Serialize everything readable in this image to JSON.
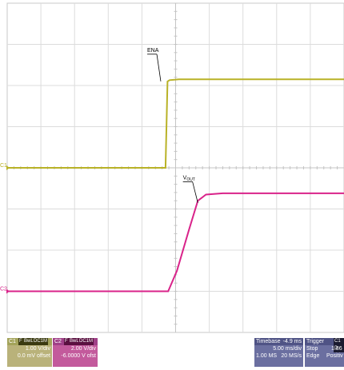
{
  "chart_data": {
    "type": "line",
    "x": {
      "divisions": 10,
      "units_per_div": 5,
      "unit": "ms",
      "range": [
        -25,
        25
      ]
    },
    "y": {
      "divisions": 8,
      "range": [
        -4,
        4
      ]
    },
    "grid": true,
    "series": [
      {
        "name": "ENA",
        "channel": "C1",
        "color": "#b9b227",
        "points": [
          [
            -25,
            0.0
          ],
          [
            -1.5,
            0.0
          ],
          [
            -1.2,
            2.1
          ],
          [
            -0.9,
            2.13
          ],
          [
            0.5,
            2.15
          ],
          [
            25,
            2.15
          ]
        ]
      },
      {
        "name": "VOUT",
        "channel": "C2",
        "color": "#d9238a",
        "points": [
          [
            -25,
            -3.0
          ],
          [
            -1.1,
            -3.0
          ],
          [
            0.2,
            -2.5
          ],
          [
            2.0,
            -1.5
          ],
          [
            3.3,
            -0.8
          ],
          [
            4.5,
            -0.65
          ],
          [
            7.0,
            -0.62
          ],
          [
            25,
            -0.62
          ]
        ]
      }
    ],
    "annotations": [
      {
        "text": "ENA",
        "at": [
          -2.2,
          2.1
        ],
        "label_at": [
          -3.5,
          2.8
        ],
        "series": 0
      },
      {
        "text": "V",
        "sub": "OUT",
        "at": [
          3.3,
          -0.85
        ],
        "label_at": [
          1.8,
          -0.3
        ],
        "series": 1
      }
    ],
    "channel_markers": [
      {
        "text": "C1",
        "y": 0.0,
        "color": "#b9b227"
      },
      {
        "text": "C2",
        "y": -3.0,
        "color": "#d9238a"
      }
    ],
    "trigger_marker_x": -1.5
  },
  "status": {
    "c1": {
      "label": "C1",
      "tags": [
        "F",
        "BwL",
        "DC1M"
      ],
      "scale": "1.00 V/div",
      "offset": "0.0 mV offset"
    },
    "c2": {
      "label": "C2",
      "tags": [
        "F",
        "BwL",
        "DC1M"
      ],
      "scale": "2.00 V/div",
      "offset": "-6.0000 V ofst"
    },
    "timebase": {
      "label": "Timebase",
      "value": "-4.9 ms",
      "scale": "5.00 ms/div",
      "samples": "1.00 MS",
      "rate": "20 MS/s"
    },
    "trigger": {
      "label": "Trigger",
      "tag": "C1 D",
      "mode": "Stop",
      "level": "1.86",
      "type": "Edge",
      "slope": "Positiv"
    }
  }
}
